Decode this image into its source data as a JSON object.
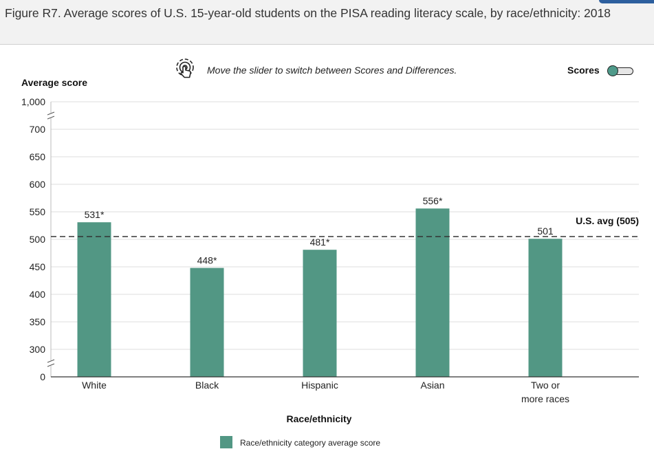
{
  "header": {
    "title": "Figure R7. Average scores of U.S. 15-year-old students on the PISA reading literacy scale, by race/ethnicity: 2018"
  },
  "controls": {
    "hint_text": "Move the slider to switch between Scores and Differences.",
    "hint_icon": "touch-swipe-icon",
    "toggle_label": "Scores"
  },
  "colors": {
    "bar": "#529784",
    "reference_line": "#333333",
    "grid": "#dddddd",
    "toggle_knob": "#4f9a8a"
  },
  "chart_data": {
    "type": "bar",
    "title": "",
    "ylabel": "Average score",
    "xlabel": "Race/ethnicity",
    "categories": [
      {
        "label": [
          "White"
        ]
      },
      {
        "label": [
          "Black"
        ]
      },
      {
        "label": [
          "Hispanic"
        ]
      },
      {
        "label": [
          "Asian"
        ]
      },
      {
        "label": [
          "Two or",
          "more races"
        ]
      }
    ],
    "values": [
      531,
      448,
      481,
      556,
      501
    ],
    "value_labels": [
      "531*",
      "448*",
      "481*",
      "556*",
      "501"
    ],
    "y_ticks": [
      0,
      300,
      350,
      400,
      450,
      500,
      550,
      600,
      650,
      700,
      1000
    ],
    "y_tick_labels": [
      "0",
      "300",
      "350",
      "400",
      "450",
      "500",
      "550",
      "600",
      "650",
      "700",
      "1,000"
    ],
    "axis_breaks": [
      "0–300",
      "700–1,000"
    ],
    "reference_line": {
      "label": "U.S. avg (505)",
      "value": 505
    },
    "legend": [
      {
        "label": "Race/ethnicity category average score"
      }
    ],
    "grid": true
  }
}
